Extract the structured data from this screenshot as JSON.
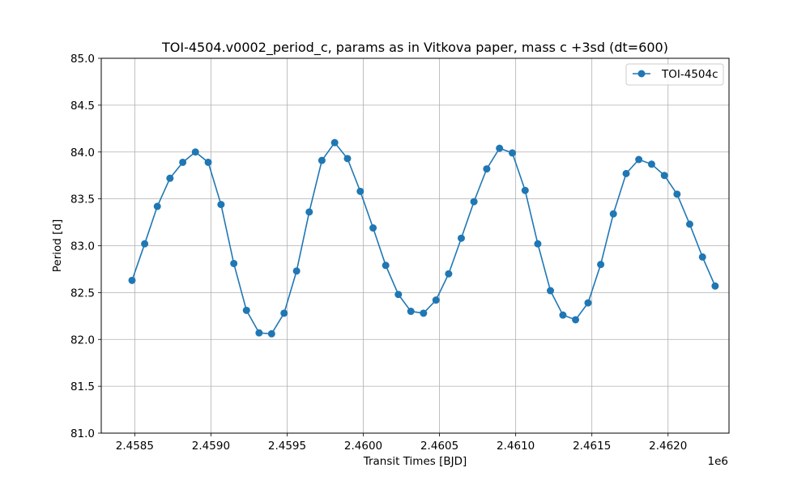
{
  "chart_data": {
    "type": "line",
    "title": "TOI-4504.v0002_period_c, params as in Vitkova paper, mass c +3sd (dt=600)",
    "xlabel": "Transit Times [BJD]",
    "ylabel": "Period [d]",
    "x_offset_label": "1e6",
    "xlim": [
      2.45828,
      2.4624
    ],
    "ylim": [
      81.0,
      85.0
    ],
    "grid": true,
    "legend_position": "upper right",
    "x_ticks": [
      2.4585,
      2.459,
      2.4595,
      2.46,
      2.4605,
      2.461,
      2.4615,
      2.462
    ],
    "x_tick_labels": [
      "2.4585",
      "2.4590",
      "2.4595",
      "2.4600",
      "2.4605",
      "2.4610",
      "2.4615",
      "2.4620"
    ],
    "y_ticks": [
      81.0,
      81.5,
      82.0,
      82.5,
      83.0,
      83.5,
      84.0,
      84.5,
      85.0
    ],
    "y_tick_labels": [
      "81.0",
      "81.5",
      "82.0",
      "82.5",
      "83.0",
      "83.5",
      "84.0",
      "84.5",
      "85.0"
    ],
    "series": [
      {
        "name": "TOI-4504c",
        "color": "#1f77b4",
        "marker": "circle",
        "x": [
          2.458482,
          2.458565,
          2.458648,
          2.458731,
          2.458815,
          2.458898,
          2.458982,
          2.459066,
          2.45915,
          2.459233,
          2.459316,
          2.459398,
          2.45948,
          2.459562,
          2.459645,
          2.459728,
          2.459812,
          2.459896,
          2.45998,
          2.460064,
          2.460147,
          2.46023,
          2.460312,
          2.460395,
          2.460477,
          2.46056,
          2.460643,
          2.460726,
          2.46081,
          2.460894,
          2.460978,
          2.461062,
          2.461145,
          2.461228,
          2.46131,
          2.461393,
          2.461475,
          2.461558,
          2.461641,
          2.461725,
          2.461808,
          2.461892,
          2.461976,
          2.462059,
          2.462142,
          2.462226,
          2.462309
        ],
        "y": [
          82.63,
          83.02,
          83.42,
          83.72,
          83.89,
          84.0,
          83.89,
          83.44,
          82.81,
          82.31,
          82.07,
          82.06,
          82.28,
          82.73,
          83.36,
          83.91,
          84.1,
          83.93,
          83.58,
          83.19,
          82.79,
          82.48,
          82.3,
          82.28,
          82.42,
          82.7,
          83.08,
          83.47,
          83.82,
          84.04,
          83.99,
          83.59,
          83.02,
          82.52,
          82.26,
          82.21,
          82.39,
          82.8,
          83.34,
          83.77,
          83.92,
          83.87,
          83.75,
          83.55,
          83.23,
          82.88,
          82.57
        ]
      }
    ]
  }
}
